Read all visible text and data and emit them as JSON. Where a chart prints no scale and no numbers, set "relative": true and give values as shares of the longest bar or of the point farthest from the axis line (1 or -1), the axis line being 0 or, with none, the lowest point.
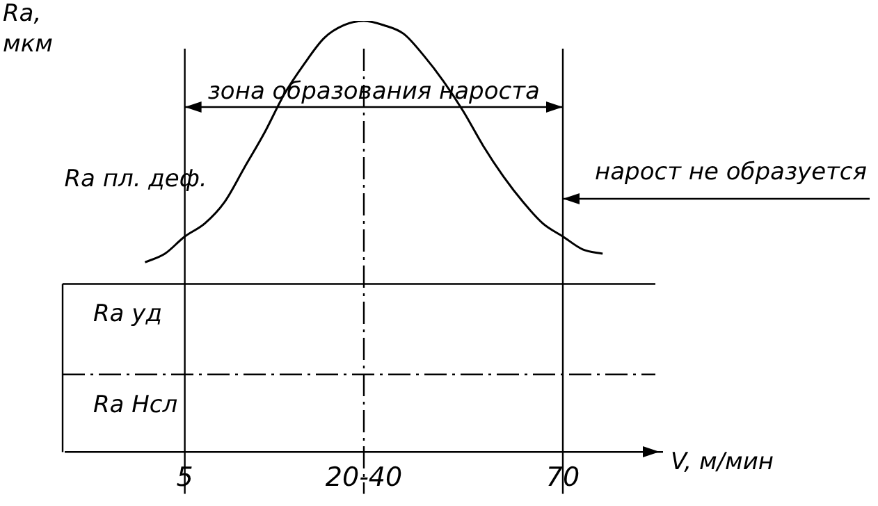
{
  "chart_data": {
    "type": "line",
    "relative": true,
    "ylabel": "Ra, мкм",
    "xlabel": "V, м/мин",
    "color": "#000000",
    "marker": "none",
    "grid": false,
    "legend": false,
    "categories": [
      null,
      null,
      null,
      null,
      null,
      null,
      "5",
      null,
      null,
      null,
      null,
      null,
      null,
      null,
      null,
      "20-40",
      null,
      null,
      null,
      null,
      null,
      null,
      null,
      null,
      null,
      "70",
      null,
      null,
      null,
      null,
      null
    ],
    "values": [
      null,
      null,
      null,
      null,
      0.44,
      0.46,
      0.5,
      0.53,
      0.58,
      0.66,
      0.74,
      0.83,
      0.9,
      0.96,
      0.99,
      1,
      0.99,
      0.97,
      0.92,
      0.86,
      0.79,
      0.71,
      0.64,
      0.58,
      0.53,
      0.5,
      0.47,
      0.46,
      null,
      null,
      null
    ],
    "ref_lines": [
      {
        "axis": "x",
        "value": "5"
      },
      {
        "axis": "x",
        "value": "20-40",
        "line_style": "dashed"
      },
      {
        "axis": "x",
        "value": "70"
      },
      {
        "axis": "y",
        "value": 0.39,
        "label": "Ra уд"
      },
      {
        "axis": "y",
        "value": 0.18,
        "line_style": "dashed",
        "label": "Ra Нсл"
      }
    ],
    "annotations": [
      {
        "text": "Ra пл. деф.",
        "x": "5",
        "y": 0.63
      },
      "зона образования нароста",
      "нарост не образуется"
    ]
  }
}
